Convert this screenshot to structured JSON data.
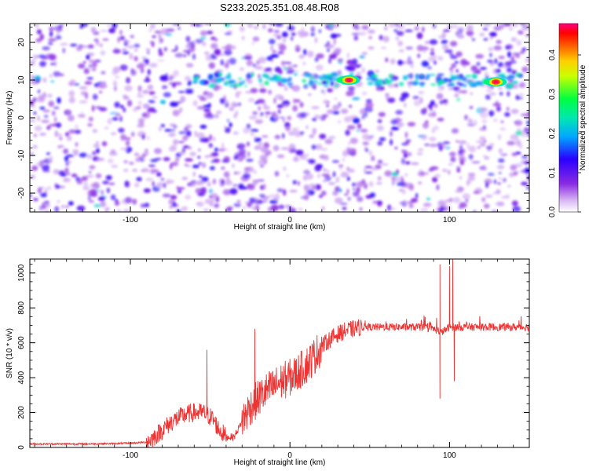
{
  "title": "S233.2025.351.08.48.R08",
  "chart_data": [
    {
      "type": "heatmap",
      "xlabel": "Height of straight line (km)",
      "ylabel": "Frequency (Hz)",
      "xlim": [
        -163,
        150
      ],
      "ylim": [
        -25,
        25
      ],
      "xticks": [
        -100,
        0,
        100
      ],
      "yticks": [
        -20,
        -10,
        0,
        10,
        20
      ],
      "colorbar": {
        "label": "Normalized spectral amplitude",
        "range": [
          0,
          0.48
        ],
        "ticks": [
          0.0,
          0.1,
          0.2,
          0.3,
          0.4
        ],
        "tick_labels": [
          "0.0",
          "0.1",
          "0.2",
          "0.3",
          "0.4"
        ],
        "colors": [
          "#ffffff",
          "#8a2be2",
          "#0000ff",
          "#00c0ff",
          "#00ff60",
          "#ffff00",
          "#ff8000",
          "#ff0000",
          "#ff0080"
        ]
      },
      "features": [
        {
          "description": "signal band",
          "frequency_hz": 10,
          "x_range": [
            -60,
            150
          ]
        },
        {
          "peak_x": 37,
          "frequency_hz": 10,
          "amplitude": 0.45
        },
        {
          "peak_x": 129,
          "frequency_hz": 9.5,
          "amplitude": 0.45
        }
      ]
    },
    {
      "type": "line",
      "xlabel": "Height of straight line (km)",
      "ylabel": "SNR (10 * v/v)",
      "xlim": [
        -163,
        150
      ],
      "ylim": [
        0,
        1080
      ],
      "xticks": [
        -100,
        0,
        100
      ],
      "yticks": [
        0,
        200,
        400,
        600,
        800,
        1000
      ],
      "color": "#ee3333",
      "series": [
        {
          "x": [
            -163,
            -150,
            -130,
            -110,
            -100,
            -90,
            -85,
            -80,
            -75,
            -70,
            -65,
            -60,
            -55,
            -52,
            -48,
            -45,
            -40,
            -35,
            -30,
            -25,
            -20,
            -15,
            -10,
            -5,
            0,
            5,
            10,
            15,
            20,
            25,
            30,
            35,
            40,
            45,
            50,
            60,
            70,
            80,
            90,
            95,
            100,
            105,
            110,
            120,
            130,
            140,
            150
          ],
          "values": [
            20,
            20,
            20,
            22,
            25,
            30,
            60,
            100,
            140,
            170,
            190,
            200,
            200,
            190,
            160,
            110,
            60,
            60,
            150,
            230,
            280,
            320,
            350,
            380,
            400,
            430,
            470,
            520,
            580,
            620,
            650,
            670,
            680,
            690,
            690,
            690,
            690,
            690,
            680,
            660,
            690,
            690,
            690,
            690,
            690,
            690,
            690
          ]
        }
      ],
      "spikes": [
        {
          "x": -52,
          "value": 560
        },
        {
          "x": -22,
          "value": 680
        },
        {
          "x": 94,
          "value": 280
        },
        {
          "x": 94,
          "value": 1050
        },
        {
          "x": 100,
          "value": 1040
        },
        {
          "x": 102,
          "value": 1080
        },
        {
          "x": 103,
          "value": 380
        }
      ]
    }
  ]
}
